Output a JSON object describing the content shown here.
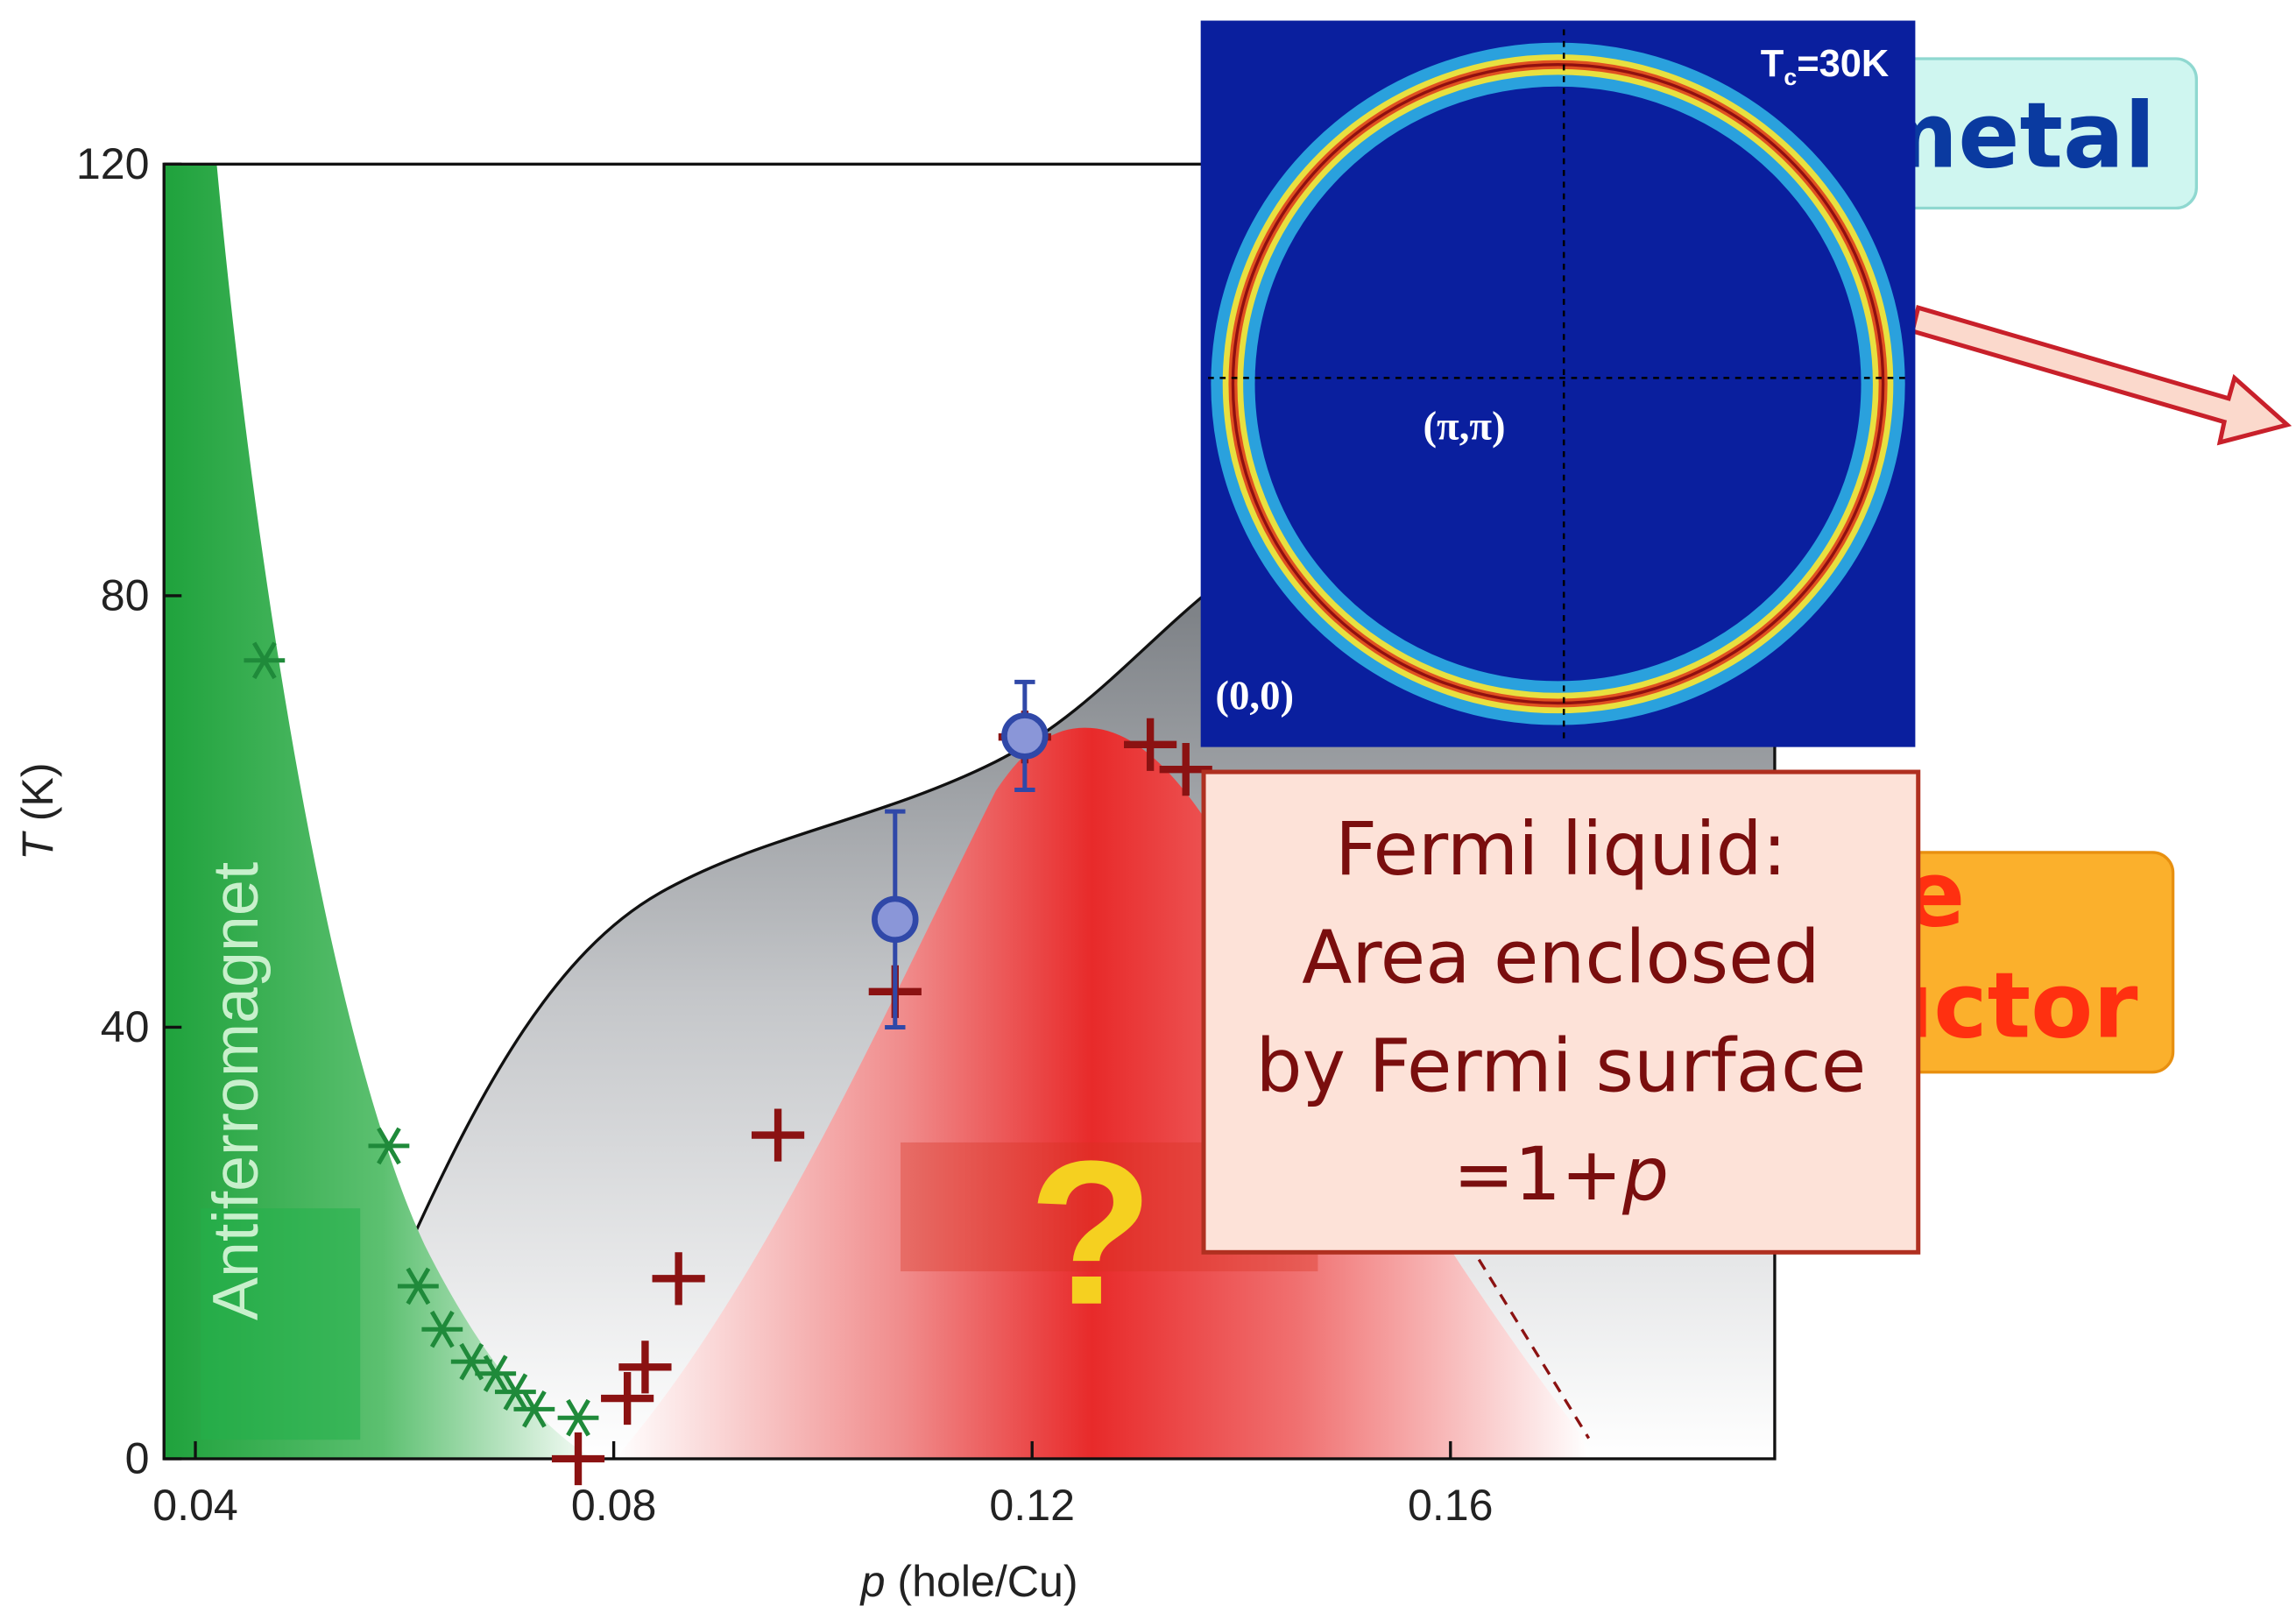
{
  "chart_data": {
    "type": "scatter",
    "xlabel": [
      "p",
      " (hole/Cu)"
    ],
    "ylabel": [
      "T",
      " (K)"
    ],
    "xlim": [
      0.037,
      0.191
    ],
    "xticks": [
      0.04,
      0.08,
      0.12,
      0.16
    ],
    "ylim": [
      0,
      120
    ],
    "yticks": [
      0,
      40,
      80,
      120
    ],
    "series": [
      {
        "color": "#1f8a3a",
        "marker": "asterisk",
        "x": [
          0.0466,
          0.0585,
          0.0613,
          0.0636,
          0.0664,
          0.0687,
          0.0706,
          0.0724,
          0.0766
        ],
        "values": [
          74,
          29,
          16,
          12,
          9,
          7.9,
          6.2,
          4.6,
          3.8
        ]
      },
      {
        "color": "#8b1212",
        "marker": "plus",
        "x": [
          0.0766,
          0.0813,
          0.083,
          0.0862,
          0.0957,
          0.1069,
          0.1193,
          0.1313,
          0.1347
        ],
        "values": [
          0,
          5.6,
          8.5,
          16.7,
          30,
          43.3,
          66.9,
          66.2,
          63.9
        ]
      },
      {
        "color": "#3048a8",
        "marker": "circle",
        "x": [
          0.1069,
          0.1193
        ],
        "values": [
          50,
          67
        ],
        "errors": [
          10,
          5
        ]
      }
    ],
    "region_label": "Antiferromagnet",
    "question": "?",
    "inset": {
      "corner_label": [
        "T",
        "c",
        "=30K"
      ],
      "center_label": "(π,π)",
      "origin_label": "(0,0)"
    },
    "callout": {
      "lines": [
        "Fermi liquid:",
        "Area enclosed",
        "by Fermi surface"
      ],
      "last_line": [
        "=1+",
        "p"
      ]
    },
    "boxes": {
      "metal": "metal",
      "superconductor": [
        "e",
        "uctor"
      ]
    }
  }
}
